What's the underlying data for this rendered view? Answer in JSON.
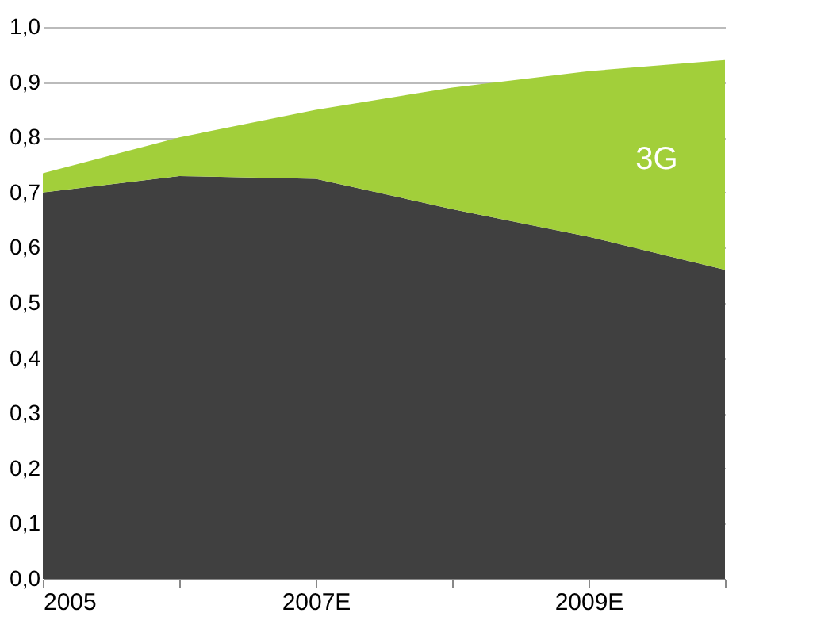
{
  "chart_data": {
    "type": "area",
    "stacked": true,
    "categories": [
      "2005",
      null,
      "2007E",
      null,
      "2009E",
      null
    ],
    "series": [
      {
        "color": "#404040",
        "values": [
          0.7,
          0.73,
          0.725,
          0.67,
          0.62,
          0.56
        ]
      },
      {
        "name": "3G",
        "color": "#a2cf3a",
        "values": [
          0.035,
          0.07,
          0.125,
          0.22,
          0.3,
          0.38
        ]
      }
    ],
    "ylim": [
      0,
      1.0
    ],
    "yticks": [
      {
        "value": 0,
        "label": "0,0"
      },
      {
        "value": 0.1,
        "label": "0,1"
      },
      {
        "value": 0.2,
        "label": "0,2"
      },
      {
        "value": 0.3,
        "label": "0,3"
      },
      {
        "value": 0.4,
        "label": "0,4"
      },
      {
        "value": 0.5,
        "label": "0,5"
      },
      {
        "value": 0.6,
        "label": "0,6"
      },
      {
        "value": 0.7,
        "label": "0,7"
      },
      {
        "value": 0.8,
        "label": "0,8"
      },
      {
        "value": 0.9,
        "label": "0,9"
      },
      {
        "value": 1.0,
        "label": "1,0"
      }
    ],
    "grid": "y"
  }
}
